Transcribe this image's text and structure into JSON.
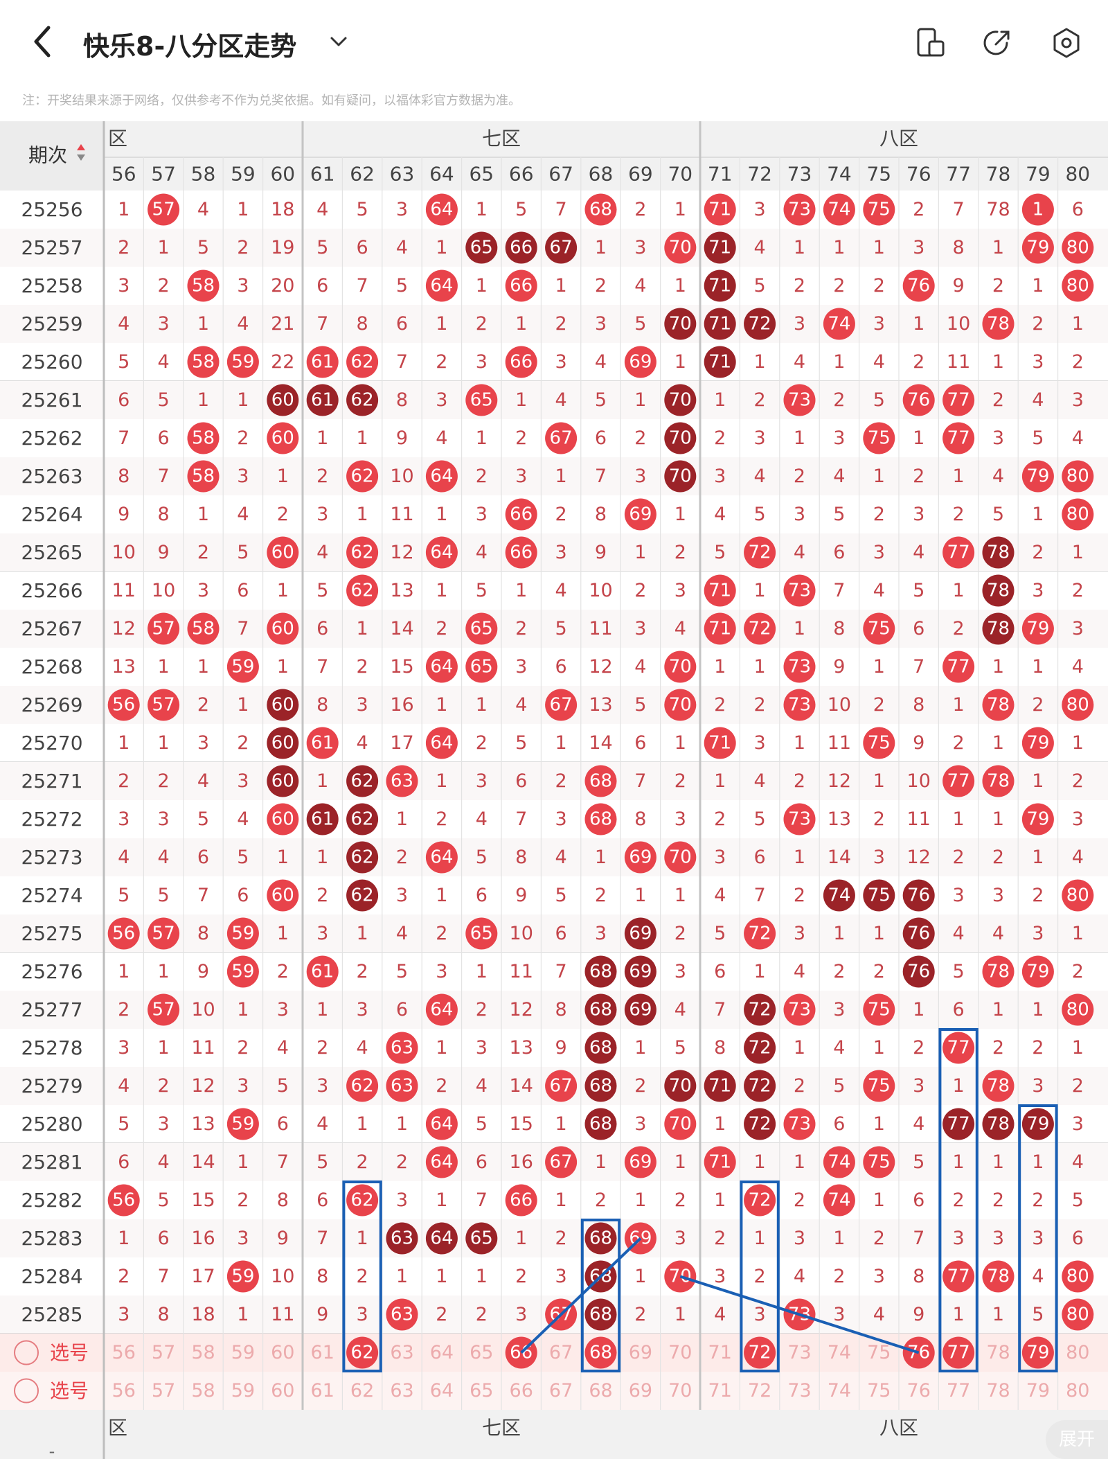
{
  "header": {
    "title": "快乐8-八分区走势",
    "note": "注：开奖结果来源于网络，仅供参考不作为兑奖依据。如有疑问，以福体彩官方数据为准。"
  },
  "table": {
    "period_header": "期次",
    "zones": [
      {
        "label": "六区",
        "shown": "区"
      },
      {
        "label": "七区",
        "shown": "七区"
      },
      {
        "label": "八区",
        "shown": "八区"
      }
    ],
    "columns": [
      "56",
      "57",
      "58",
      "59",
      "60",
      "61",
      "62",
      "63",
      "64",
      "65",
      "66",
      "67",
      "68",
      "69",
      "70",
      "71",
      "72",
      "73",
      "74",
      "75",
      "76",
      "77",
      "78",
      "79",
      "80"
    ],
    "rows": [
      {
        "period": "25256",
        "cells": [
          "1",
          "57",
          "4",
          "1",
          "18",
          "4",
          "5",
          "3",
          "64",
          "1",
          "5",
          "7",
          "68",
          "2",
          "1",
          "71",
          "3",
          "73",
          "74",
          "75",
          "2",
          "7",
          "78",
          "1",
          "6"
        ],
        "styles": "0100000010001001011100010"
      },
      {
        "period": "25257",
        "cells": [
          "2",
          "1",
          "5",
          "2",
          "19",
          "5",
          "6",
          "4",
          "1",
          "65",
          "66",
          "67",
          "1",
          "3",
          "70",
          "71",
          "4",
          "1",
          "1",
          "1",
          "3",
          "8",
          "1",
          "79",
          "80"
        ],
        "styles": "0000000002220012000000011"
      },
      {
        "period": "25258",
        "cells": [
          "3",
          "2",
          "58",
          "3",
          "20",
          "6",
          "7",
          "5",
          "64",
          "1",
          "66",
          "1",
          "2",
          "4",
          "1",
          "71",
          "5",
          "2",
          "2",
          "2",
          "76",
          "9",
          "2",
          "1",
          "80"
        ],
        "styles": "0010000010100002000010001"
      },
      {
        "period": "25259",
        "cells": [
          "4",
          "3",
          "1",
          "4",
          "21",
          "7",
          "8",
          "6",
          "1",
          "2",
          "1",
          "2",
          "3",
          "5",
          "70",
          "71",
          "72",
          "3",
          "74",
          "3",
          "1",
          "10",
          "78",
          "2",
          "1"
        ],
        "styles": "0000000000000022201000100"
      },
      {
        "period": "25260",
        "cells": [
          "5",
          "4",
          "58",
          "59",
          "22",
          "61",
          "62",
          "7",
          "2",
          "3",
          "66",
          "3",
          "4",
          "69",
          "1",
          "71",
          "1",
          "4",
          "1",
          "4",
          "2",
          "11",
          "1",
          "3",
          "2"
        ],
        "styles": "0011011000100102000000000"
      },
      {
        "period": "25261",
        "cells": [
          "6",
          "5",
          "1",
          "1",
          "60",
          "61",
          "62",
          "8",
          "3",
          "65",
          "1",
          "4",
          "5",
          "1",
          "70",
          "1",
          "2",
          "73",
          "2",
          "5",
          "76",
          "77",
          "2",
          "4",
          "3"
        ],
        "styles": "0000222001000020010011000"
      },
      {
        "period": "25262",
        "cells": [
          "7",
          "6",
          "58",
          "2",
          "60",
          "1",
          "1",
          "9",
          "4",
          "1",
          "2",
          "67",
          "6",
          "2",
          "70",
          "2",
          "3",
          "1",
          "3",
          "75",
          "1",
          "77",
          "3",
          "5",
          "4"
        ],
        "styles": "0010100000010020000101000"
      },
      {
        "period": "25263",
        "cells": [
          "8",
          "7",
          "58",
          "3",
          "1",
          "2",
          "62",
          "10",
          "64",
          "2",
          "3",
          "1",
          "7",
          "3",
          "70",
          "3",
          "4",
          "2",
          "4",
          "1",
          "2",
          "1",
          "4",
          "79",
          "80"
        ],
        "styles": "0010001010000020000000011"
      },
      {
        "period": "25264",
        "cells": [
          "9",
          "8",
          "1",
          "4",
          "2",
          "3",
          "1",
          "11",
          "1",
          "3",
          "66",
          "2",
          "8",
          "69",
          "1",
          "4",
          "5",
          "3",
          "5",
          "2",
          "3",
          "2",
          "5",
          "1",
          "80"
        ],
        "styles": "0000000000100100000000001"
      },
      {
        "period": "25265",
        "cells": [
          "10",
          "9",
          "2",
          "5",
          "60",
          "4",
          "62",
          "12",
          "64",
          "4",
          "66",
          "3",
          "9",
          "1",
          "2",
          "5",
          "72",
          "4",
          "6",
          "3",
          "4",
          "77",
          "78",
          "2",
          "1"
        ],
        "styles": "0000101010100000100001200"
      },
      {
        "period": "25266",
        "cells": [
          "11",
          "10",
          "3",
          "6",
          "1",
          "5",
          "62",
          "13",
          "1",
          "5",
          "1",
          "4",
          "10",
          "2",
          "3",
          "71",
          "1",
          "73",
          "7",
          "4",
          "5",
          "1",
          "78",
          "3",
          "2"
        ],
        "styles": "0000001000000001010000200"
      },
      {
        "period": "25267",
        "cells": [
          "12",
          "57",
          "58",
          "7",
          "60",
          "6",
          "1",
          "14",
          "2",
          "65",
          "2",
          "5",
          "11",
          "3",
          "4",
          "71",
          "72",
          "1",
          "8",
          "75",
          "6",
          "2",
          "78",
          "79",
          "3"
        ],
        "styles": "0110100001000001100100210"
      },
      {
        "period": "25268",
        "cells": [
          "13",
          "1",
          "1",
          "59",
          "1",
          "7",
          "2",
          "15",
          "64",
          "65",
          "3",
          "6",
          "12",
          "4",
          "70",
          "1",
          "1",
          "73",
          "9",
          "1",
          "7",
          "77",
          "1",
          "1",
          "4"
        ],
        "styles": "0001000011000010010001000"
      },
      {
        "period": "25269",
        "cells": [
          "56",
          "57",
          "2",
          "1",
          "60",
          "8",
          "3",
          "16",
          "1",
          "1",
          "4",
          "67",
          "13",
          "5",
          "70",
          "2",
          "2",
          "73",
          "10",
          "2",
          "8",
          "1",
          "78",
          "2",
          "80"
        ],
        "styles": "1100200000010010010000101"
      },
      {
        "period": "25270",
        "cells": [
          "1",
          "1",
          "3",
          "2",
          "60",
          "61",
          "4",
          "17",
          "64",
          "2",
          "5",
          "1",
          "14",
          "6",
          "1",
          "71",
          "3",
          "1",
          "11",
          "75",
          "9",
          "2",
          "1",
          "79",
          "1"
        ],
        "styles": "0000210010000001000100010"
      },
      {
        "period": "25271",
        "cells": [
          "2",
          "2",
          "4",
          "3",
          "60",
          "1",
          "62",
          "63",
          "1",
          "3",
          "6",
          "2",
          "68",
          "7",
          "2",
          "1",
          "4",
          "2",
          "12",
          "1",
          "10",
          "77",
          "78",
          "1",
          "2"
        ],
        "styles": "0000202100001000000001100"
      },
      {
        "period": "25272",
        "cells": [
          "3",
          "3",
          "5",
          "4",
          "60",
          "61",
          "62",
          "1",
          "2",
          "4",
          "7",
          "3",
          "68",
          "8",
          "3",
          "2",
          "5",
          "73",
          "13",
          "2",
          "11",
          "1",
          "1",
          "79",
          "3"
        ],
        "styles": "0000122000001000010000010"
      },
      {
        "period": "25273",
        "cells": [
          "4",
          "4",
          "6",
          "5",
          "1",
          "1",
          "62",
          "2",
          "64",
          "5",
          "8",
          "4",
          "1",
          "69",
          "70",
          "3",
          "6",
          "1",
          "14",
          "3",
          "12",
          "2",
          "2",
          "1",
          "4"
        ],
        "styles": "0000002010000110000000000"
      },
      {
        "period": "25274",
        "cells": [
          "5",
          "5",
          "7",
          "6",
          "60",
          "2",
          "62",
          "3",
          "1",
          "6",
          "9",
          "5",
          "2",
          "1",
          "1",
          "4",
          "7",
          "2",
          "74",
          "75",
          "76",
          "3",
          "3",
          "2",
          "80"
        ],
        "styles": "0000102000000000002220001"
      },
      {
        "period": "25275",
        "cells": [
          "56",
          "57",
          "8",
          "59",
          "1",
          "3",
          "1",
          "4",
          "2",
          "65",
          "10",
          "6",
          "3",
          "69",
          "2",
          "5",
          "72",
          "3",
          "1",
          "1",
          "76",
          "4",
          "4",
          "3",
          "1"
        ],
        "styles": "1101000001000200100020000"
      },
      {
        "period": "25276",
        "cells": [
          "1",
          "1",
          "9",
          "59",
          "2",
          "61",
          "2",
          "5",
          "3",
          "1",
          "11",
          "7",
          "68",
          "69",
          "3",
          "6",
          "1",
          "4",
          "2",
          "2",
          "76",
          "5",
          "78",
          "79",
          "2"
        ],
        "styles": "0001010000002200000020110"
      },
      {
        "period": "25277",
        "cells": [
          "2",
          "57",
          "10",
          "1",
          "3",
          "1",
          "3",
          "6",
          "64",
          "2",
          "12",
          "8",
          "68",
          "69",
          "4",
          "7",
          "72",
          "73",
          "3",
          "75",
          "1",
          "6",
          "1",
          "1",
          "80"
        ],
        "styles": "0100000010002200210100001"
      },
      {
        "period": "25278",
        "cells": [
          "3",
          "1",
          "11",
          "2",
          "4",
          "2",
          "4",
          "63",
          "1",
          "3",
          "13",
          "9",
          "68",
          "1",
          "5",
          "8",
          "72",
          "1",
          "4",
          "1",
          "2",
          "77",
          "2",
          "2",
          "1"
        ],
        "styles": "0000000100002000200001000"
      },
      {
        "period": "25279",
        "cells": [
          "4",
          "2",
          "12",
          "3",
          "5",
          "3",
          "62",
          "63",
          "2",
          "4",
          "14",
          "67",
          "68",
          "2",
          "70",
          "71",
          "72",
          "2",
          "5",
          "75",
          "3",
          "1",
          "78",
          "3",
          "2"
        ],
        "styles": "0000001100012022200100100"
      },
      {
        "period": "25280",
        "cells": [
          "5",
          "3",
          "13",
          "59",
          "6",
          "4",
          "1",
          "1",
          "64",
          "5",
          "15",
          "1",
          "68",
          "3",
          "70",
          "1",
          "72",
          "73",
          "6",
          "1",
          "4",
          "77",
          "78",
          "79",
          "3"
        ],
        "styles": "0001000010002010210002220"
      },
      {
        "period": "25281",
        "cells": [
          "6",
          "4",
          "14",
          "1",
          "7",
          "5",
          "2",
          "2",
          "64",
          "6",
          "16",
          "67",
          "1",
          "69",
          "1",
          "71",
          "1",
          "1",
          "74",
          "75",
          "5",
          "1",
          "1",
          "1",
          "4"
        ],
        "styles": "0000000010010101001100000"
      },
      {
        "period": "25282",
        "cells": [
          "56",
          "5",
          "15",
          "2",
          "8",
          "6",
          "62",
          "3",
          "1",
          "7",
          "66",
          "1",
          "2",
          "1",
          "2",
          "1",
          "72",
          "2",
          "74",
          "1",
          "6",
          "2",
          "2",
          "2",
          "5"
        ],
        "styles": "1000001000100000101000000"
      },
      {
        "period": "25283",
        "cells": [
          "1",
          "6",
          "16",
          "3",
          "9",
          "7",
          "1",
          "63",
          "64",
          "65",
          "1",
          "2",
          "68",
          "69",
          "3",
          "2",
          "1",
          "3",
          "1",
          "2",
          "7",
          "3",
          "3",
          "3",
          "6"
        ],
        "styles": "0000000222002100000000000"
      },
      {
        "period": "25284",
        "cells": [
          "2",
          "7",
          "17",
          "59",
          "10",
          "8",
          "2",
          "1",
          "1",
          "1",
          "2",
          "3",
          "68",
          "1",
          "70",
          "3",
          "2",
          "4",
          "2",
          "3",
          "8",
          "77",
          "78",
          "4",
          "80"
        ],
        "styles": "0001000000002010000001101"
      },
      {
        "period": "25285",
        "cells": [
          "3",
          "8",
          "18",
          "1",
          "11",
          "9",
          "3",
          "63",
          "2",
          "2",
          "3",
          "67",
          "68",
          "2",
          "1",
          "4",
          "3",
          "73",
          "3",
          "4",
          "9",
          "1",
          "1",
          "5",
          "80"
        ],
        "styles": "0000000100012000010000001"
      }
    ],
    "select_rows": [
      {
        "label": "选号",
        "cells": [
          "56",
          "57",
          "58",
          "59",
          "60",
          "61",
          "62",
          "63",
          "64",
          "65",
          "66",
          "67",
          "68",
          "69",
          "70",
          "71",
          "72",
          "73",
          "74",
          "75",
          "76",
          "77",
          "78",
          "79",
          "80"
        ],
        "selected": [
          "62",
          "66",
          "68",
          "72",
          "76",
          "77",
          "79"
        ]
      },
      {
        "label": "选号",
        "cells": [
          "56",
          "57",
          "58",
          "59",
          "60",
          "61",
          "62",
          "63",
          "64",
          "65",
          "66",
          "67",
          "68",
          "69",
          "70",
          "71",
          "72",
          "73",
          "74",
          "75",
          "76",
          "77",
          "78",
          "79",
          "80"
        ],
        "selected": []
      }
    ],
    "footer_dash": "-",
    "expand_label": "展开"
  },
  "colors": {
    "ball_red": "#e8434b",
    "ball_dark": "#9b2328",
    "miss_text": "#c4444a",
    "accent_blue": "#1a5fb4"
  },
  "icons": [
    "back-arrow-icon",
    "chevron-down-icon",
    "tablet-icon",
    "share-icon",
    "settings-icon",
    "sort-arrows-icon"
  ]
}
